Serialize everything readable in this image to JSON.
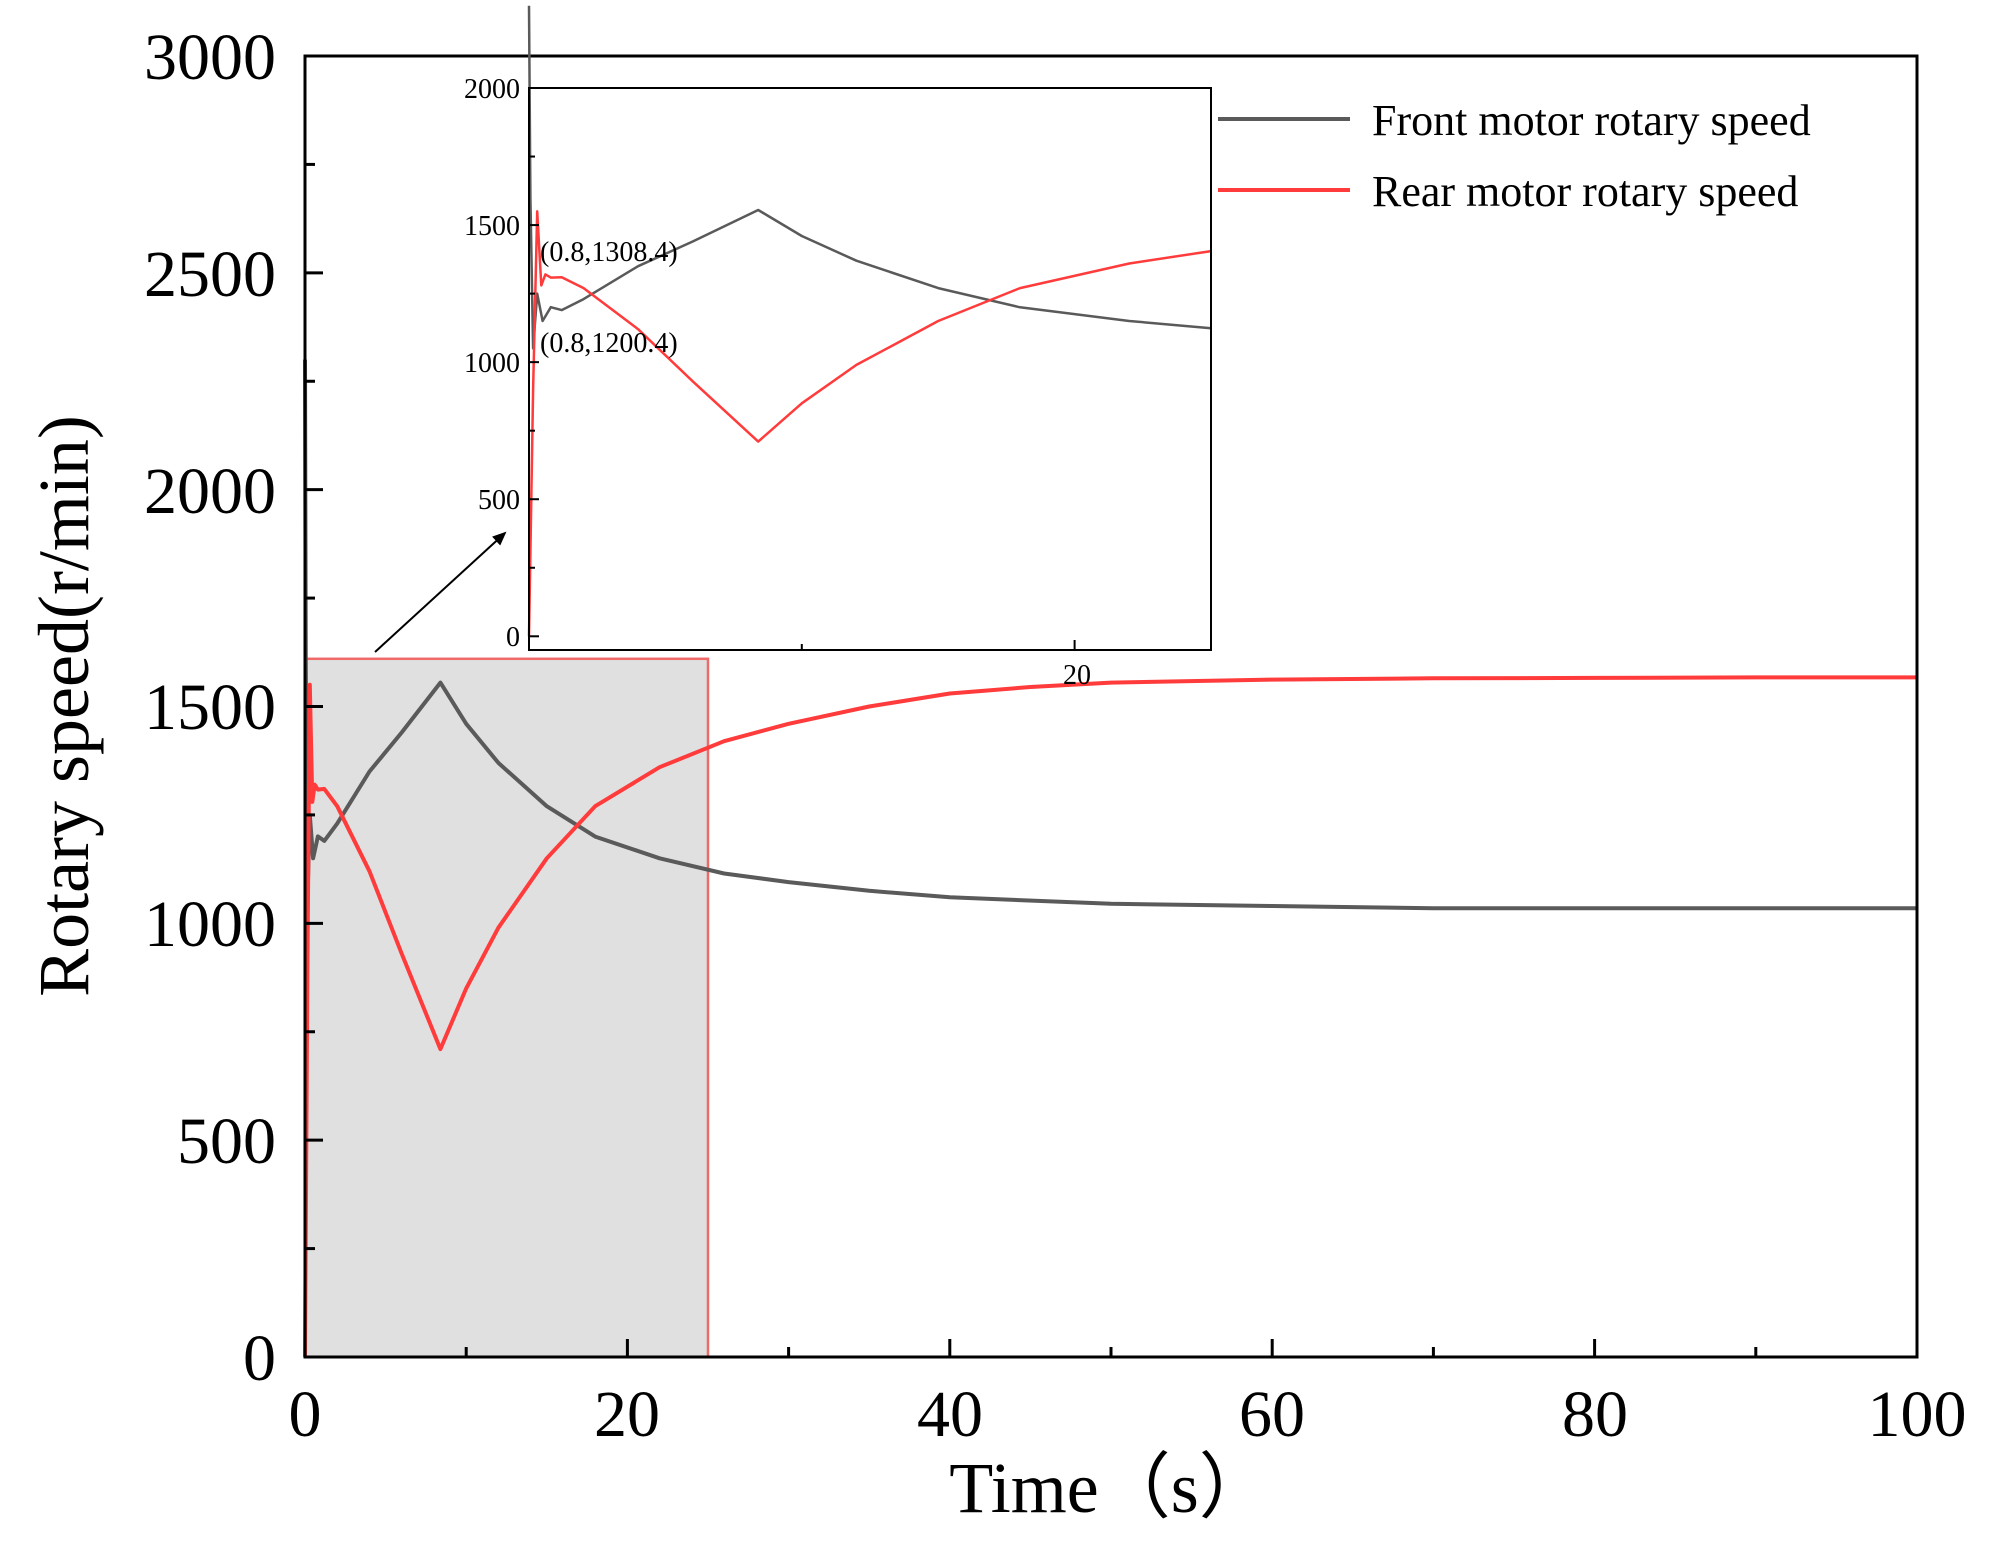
{
  "chart_data": [
    {
      "type": "line",
      "xlabel": "Time（s）",
      "ylabel": "Rotary speed(r/min)",
      "xlim": [
        0,
        100
      ],
      "ylim": [
        0,
        3000
      ],
      "xticks": [
        "0",
        "20",
        "40",
        "60",
        "80",
        "100"
      ],
      "yticks": [
        "0",
        "500",
        "1000",
        "1500",
        "2000",
        "2500",
        "3000"
      ],
      "legend": [
        "Front motor rotary speed",
        "Rear motor rotary speed"
      ],
      "highlight_region": {
        "x": [
          0,
          25
        ],
        "y": [
          0,
          1610
        ]
      },
      "series": [
        {
          "name": "Front motor rotary speed",
          "color": "#5a5a5a",
          "x": [
            0,
            0.05,
            0.15,
            0.3,
            0.5,
            0.8,
            1.2,
            2,
            4,
            6,
            8.4,
            10,
            12,
            15,
            18,
            22,
            26,
            30,
            35,
            40,
            50,
            60,
            70,
            80,
            90,
            100
          ],
          "y": [
            2300,
            1600,
            1050,
            1250,
            1150,
            1200.4,
            1190,
            1230,
            1350,
            1440,
            1555,
            1460,
            1370,
            1270,
            1200,
            1150,
            1115,
            1095,
            1075,
            1060,
            1045,
            1040,
            1035,
            1035,
            1035,
            1035
          ]
        },
        {
          "name": "Rear motor rotary speed",
          "color": "#ff3b3b",
          "x": [
            0,
            0.15,
            0.3,
            0.45,
            0.6,
            0.8,
            1.2,
            2,
            4,
            6,
            8.4,
            10,
            12,
            15,
            18,
            22,
            26,
            30,
            35,
            40,
            45,
            50,
            60,
            70,
            80,
            90,
            100
          ],
          "y": [
            0,
            900,
            1550,
            1280,
            1320,
            1308.4,
            1310,
            1270,
            1120,
            930,
            710,
            850,
            990,
            1150,
            1270,
            1360,
            1420,
            1460,
            1500,
            1530,
            1545,
            1555,
            1562,
            1565,
            1566,
            1567,
            1567
          ]
        }
      ]
    },
    {
      "type": "line",
      "role": "inset",
      "xlim": [
        0,
        25
      ],
      "ylim": [
        -50,
        2000
      ],
      "xticks": [
        "20"
      ],
      "yticks": [
        "0",
        "500",
        "1000",
        "1500",
        "2000"
      ],
      "annotations": [
        {
          "x": 0.8,
          "y": 1308.4,
          "text": "(0.8,1308.4)"
        },
        {
          "x": 0.8,
          "y": 1200.4,
          "text": "(0.8,1200.4)"
        }
      ]
    }
  ]
}
